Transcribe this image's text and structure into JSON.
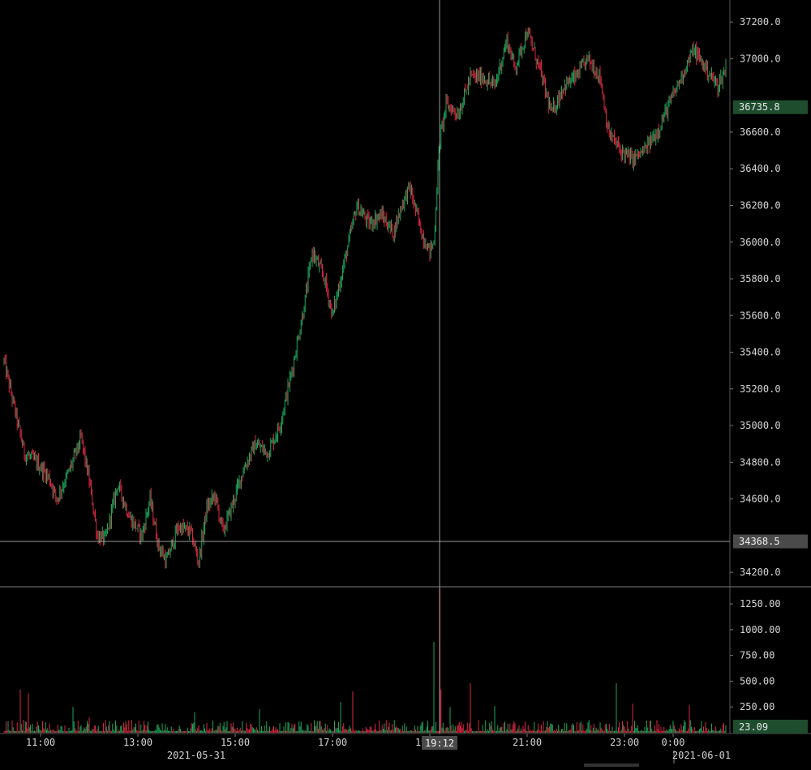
{
  "chart_data": [
    {
      "type": "candlestick",
      "panel": "price",
      "title": "",
      "ylim": [
        34130,
        37320
      ],
      "y_ticks": [
        "37200.0",
        "37000.0",
        "36600.0",
        "36400.0",
        "36200.0",
        "36000.0",
        "35800.0",
        "35600.0",
        "35400.0",
        "35200.0",
        "35000.0",
        "34800.0",
        "34600.0",
        "34200.0"
      ],
      "y_tick_values": [
        37200,
        37000,
        36600,
        36400,
        36200,
        36000,
        35800,
        35600,
        35400,
        35200,
        35000,
        34800,
        34600,
        34200
      ],
      "last_price_label": "36735.8",
      "last_price": 36735.8,
      "crosshair_price_label": "34368.5",
      "crosshair_price": 34368.5,
      "price_path": [
        [
          "10:15",
          35350
        ],
        [
          "10:25",
          35150
        ],
        [
          "10:40",
          34850
        ],
        [
          "10:55",
          34800
        ],
        [
          "11:10",
          34720
        ],
        [
          "11:20",
          34600
        ],
        [
          "11:35",
          34750
        ],
        [
          "11:50",
          34930
        ],
        [
          "12:00",
          34700
        ],
        [
          "12:10",
          34400
        ],
        [
          "12:20",
          34380
        ],
        [
          "12:35",
          34680
        ],
        [
          "12:50",
          34500
        ],
        [
          "13:05",
          34400
        ],
        [
          "13:15",
          34600
        ],
        [
          "13:25",
          34350
        ],
        [
          "13:35",
          34260
        ],
        [
          "13:50",
          34450
        ],
        [
          "14:05",
          34420
        ],
        [
          "14:15",
          34260
        ],
        [
          "14:25",
          34550
        ],
        [
          "14:35",
          34620
        ],
        [
          "14:45",
          34420
        ],
        [
          "14:55",
          34550
        ],
        [
          "15:10",
          34760
        ],
        [
          "15:25",
          34900
        ],
        [
          "15:40",
          34850
        ],
        [
          "15:55",
          35000
        ],
        [
          "16:10",
          35300
        ],
        [
          "16:25",
          35650
        ],
        [
          "16:35",
          35950
        ],
        [
          "16:50",
          35800
        ],
        [
          "17:00",
          35600
        ],
        [
          "17:15",
          35900
        ],
        [
          "17:30",
          36200
        ],
        [
          "17:45",
          36100
        ],
        [
          "18:00",
          36150
        ],
        [
          "18:15",
          36050
        ],
        [
          "18:25",
          36200
        ],
        [
          "18:35",
          36300
        ],
        [
          "18:50",
          36050
        ],
        [
          "19:00",
          35950
        ],
        [
          "19:05",
          36000
        ],
        [
          "19:12",
          36550
        ],
        [
          "19:20",
          36750
        ],
        [
          "19:35",
          36700
        ],
        [
          "19:50",
          36900
        ],
        [
          "20:05",
          36900
        ],
        [
          "20:20",
          36850
        ],
        [
          "20:35",
          37100
        ],
        [
          "20:45",
          36950
        ],
        [
          "21:00",
          37150
        ],
        [
          "21:15",
          36950
        ],
        [
          "21:30",
          36700
        ],
        [
          "21:45",
          36850
        ],
        [
          "22:00",
          36900
        ],
        [
          "22:15",
          37000
        ],
        [
          "22:30",
          36900
        ],
        [
          "22:40",
          36600
        ],
        [
          "22:55",
          36500
        ],
        [
          "23:10",
          36450
        ],
        [
          "23:25",
          36500
        ],
        [
          "23:40",
          36600
        ],
        [
          "23:55",
          36750
        ],
        [
          "0:10",
          36900
        ],
        [
          "0:25",
          37050
        ],
        [
          "0:40",
          36950
        ],
        [
          "0:55",
          36850
        ],
        [
          "1:05",
          36950
        ]
      ]
    },
    {
      "type": "bar",
      "panel": "volume",
      "ylim": [
        0,
        1400
      ],
      "y_ticks": [
        "1250.00",
        "1000.00",
        "750.00",
        "500.00",
        "250.00"
      ],
      "y_tick_values": [
        1250,
        1000,
        750,
        500,
        250
      ],
      "last_volume_label": "23.09",
      "last_volume": 23.09,
      "spikes": [
        [
          "10:35",
          420
        ],
        [
          "10:45",
          380
        ],
        [
          "11:40",
          250
        ],
        [
          "12:00",
          150
        ],
        [
          "14:10",
          200
        ],
        [
          "15:30",
          230
        ],
        [
          "17:10",
          300
        ],
        [
          "17:25",
          400
        ],
        [
          "19:05",
          880
        ],
        [
          "19:12",
          1400
        ],
        [
          "19:14",
          420
        ],
        [
          "19:25",
          250
        ],
        [
          "19:50",
          480
        ],
        [
          "20:20",
          260
        ],
        [
          "22:50",
          480
        ],
        [
          "23:10",
          280
        ],
        [
          "0:20",
          270
        ]
      ]
    }
  ],
  "x_axis": {
    "time_ticks": [
      "11:00",
      "13:00",
      "15:00",
      "17:00",
      "19:00",
      "21:00",
      "23:00",
      "0:00"
    ],
    "date_labels": [
      "2021-05-31",
      "2021-06-01"
    ],
    "crosshair_time_label": "19:12"
  },
  "colors": {
    "up": "#1ea55a",
    "down": "#d8273f",
    "background": "#000000",
    "text": "#d6d6d6",
    "crosshair": "#9a9a9a",
    "last_price_bg": "#1e4d2e",
    "crosshair_label_bg": "#3a3a3a"
  }
}
